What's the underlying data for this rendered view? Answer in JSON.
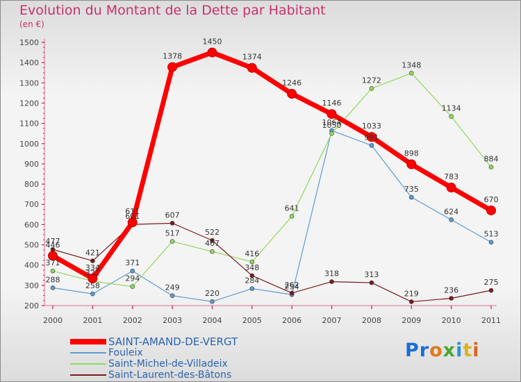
{
  "chart_data": {
    "type": "line",
    "title": "Evolution du Montant de la Dette par Habitant",
    "subtitle": "(en €)",
    "categories": [
      "2000",
      "2001",
      "2002",
      "2003",
      "2004",
      "2005",
      "2006",
      "2007",
      "2008",
      "2009",
      "2010",
      "2011"
    ],
    "ylim": [
      200,
      1500
    ],
    "yticks": [
      "200",
      "300",
      "400",
      "500",
      "600",
      "700",
      "800",
      "900",
      "1000",
      "1100",
      "1200",
      "1300",
      "1400",
      "1500"
    ],
    "grid": false,
    "legend_position": "bottom",
    "series": [
      {
        "name": "SAINT-AMAND-DE-VERGT",
        "color": "#ff0000",
        "width": 7,
        "marker": 6.5,
        "main": true,
        "values": [
          446,
          334,
          611,
          1378,
          1450,
          1374,
          1246,
          1146,
          1033,
          898,
          783,
          670
        ]
      },
      {
        "name": "Fouleix",
        "color": "#5b9bd5",
        "width": 1.2,
        "marker": 3,
        "values": [
          288,
          258,
          371,
          249,
          220,
          284,
          254,
          1064,
          991,
          735,
          624,
          513
        ]
      },
      {
        "name": "Saint-Michel-de-Villadeix",
        "color": "#90d95a",
        "width": 1.2,
        "marker": 3,
        "values": [
          371,
          321,
          294,
          517,
          467,
          416,
          641,
          1050,
          1272,
          1348,
          1134,
          884
        ]
      },
      {
        "name": "Saint-Laurent-des-Bâtons",
        "color": "#7a1a1a",
        "width": 1.2,
        "marker": 3,
        "values": [
          477,
          421,
          601,
          607,
          522,
          348,
          262,
          318,
          313,
          219,
          236,
          275
        ]
      }
    ]
  },
  "logo": {
    "text": "Proxiti",
    "parts": [
      "Pr",
      "o",
      "x",
      "i",
      "t",
      "i"
    ]
  }
}
